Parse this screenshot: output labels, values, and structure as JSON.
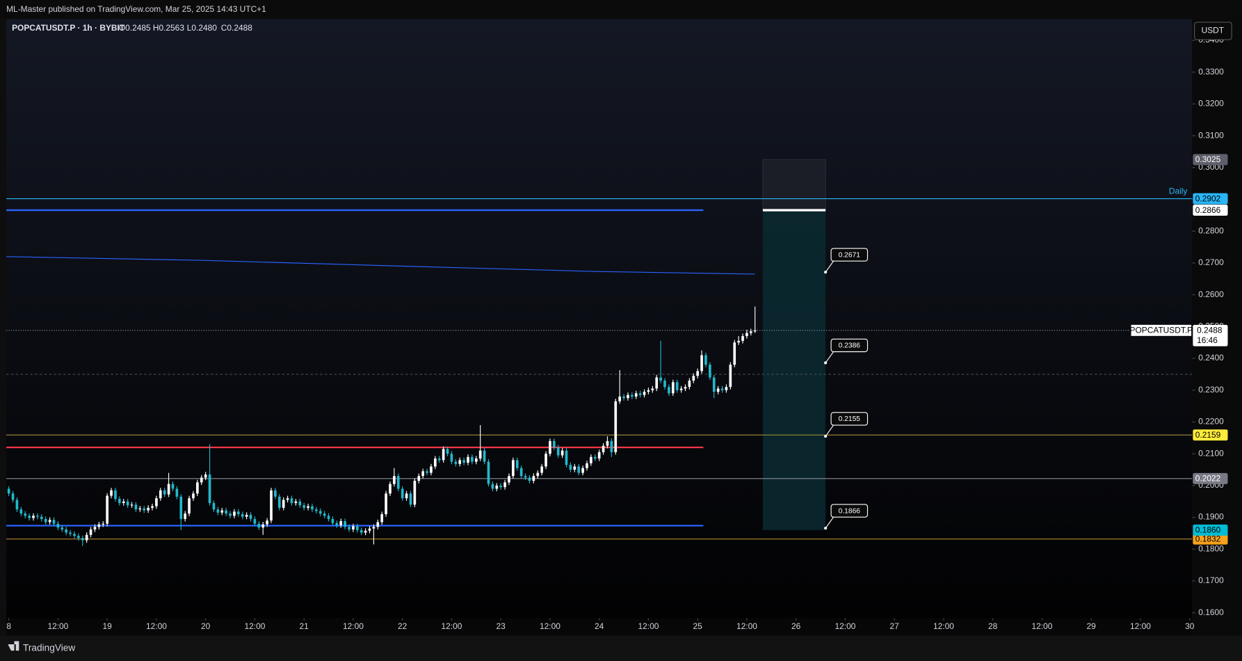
{
  "header": "ML-Master published on TradingView.com, Mar 25, 2025 14:43 UTC+1",
  "footer": "TradingView",
  "currency_button": "USDT",
  "chart_data": {
    "type": "candlestick",
    "title": "POPCATUSDT.P · 1h · BYBIT",
    "ohlc_legend": [
      "O0.2485",
      "H0.2563",
      "L0.2480",
      "C0.2488"
    ],
    "x": [
      0,
      1,
      2,
      3,
      4,
      5,
      6,
      7,
      8,
      9,
      10,
      11,
      12,
      13,
      14,
      15,
      16,
      17,
      18,
      19,
      20,
      21,
      22,
      23,
      24,
      25,
      26,
      27,
      28,
      29,
      30,
      31,
      32,
      33,
      34,
      35,
      36,
      37,
      38,
      39,
      40,
      41,
      42,
      43,
      44,
      45,
      46,
      47,
      48,
      49,
      50,
      51,
      52,
      53,
      54,
      55,
      56,
      57,
      58,
      59,
      60,
      61,
      62,
      63,
      64,
      65,
      66,
      67,
      68,
      69,
      70,
      71,
      72,
      73,
      74,
      75,
      76,
      77,
      78,
      79,
      80,
      81,
      82,
      83,
      84,
      85,
      86,
      87,
      88,
      89,
      90,
      91,
      92,
      93,
      94,
      95,
      96,
      97,
      98,
      99,
      100,
      101,
      102,
      103,
      104,
      105,
      106,
      107,
      108,
      109,
      110,
      111,
      112,
      113,
      114,
      115,
      116,
      117,
      118,
      119,
      120,
      121,
      122,
      123,
      124,
      125,
      126,
      127,
      128,
      129,
      130,
      131,
      132,
      133,
      134,
      135,
      136,
      137,
      138,
      139,
      140,
      141,
      142,
      143,
      144,
      145,
      146,
      147,
      148,
      149,
      150,
      151,
      152,
      153,
      154,
      155,
      156,
      157,
      158,
      159,
      160,
      161,
      162,
      163,
      164,
      165,
      166,
      167,
      168,
      169,
      170,
      171,
      172,
      173,
      174,
      175,
      176,
      177,
      178,
      179,
      180,
      181,
      182
    ],
    "open": [
      0.199,
      0.1975,
      0.1955,
      0.1925,
      0.1912,
      0.1905,
      0.1898,
      0.1905,
      0.1902,
      0.1895,
      0.1885,
      0.1892,
      0.188,
      0.1868,
      0.1862,
      0.1852,
      0.1848,
      0.1842,
      0.1835,
      0.1828,
      0.1845,
      0.1862,
      0.187,
      0.1878,
      0.188,
      0.1968,
      0.1985,
      0.1958,
      0.1945,
      0.195,
      0.1938,
      0.194,
      0.1925,
      0.1928,
      0.1922,
      0.193,
      0.1935,
      0.196,
      0.1985,
      0.1972,
      0.2005,
      0.199,
      0.1965,
      0.1895,
      0.1912,
      0.196,
      0.1975,
      0.201,
      0.2025,
      0.2035,
      0.1945,
      0.1925,
      0.1915,
      0.1922,
      0.1912,
      0.1905,
      0.1918,
      0.191,
      0.1902,
      0.1908,
      0.1895,
      0.188,
      0.1868,
      0.1878,
      0.189,
      0.1985,
      0.1965,
      0.193,
      0.1955,
      0.196,
      0.1945,
      0.195,
      0.1938,
      0.193,
      0.1935,
      0.1925,
      0.192,
      0.1912,
      0.1905,
      0.1895,
      0.1882,
      0.1875,
      0.1888,
      0.187,
      0.1862,
      0.1872,
      0.186,
      0.1852,
      0.1858,
      0.1865,
      0.187,
      0.1885,
      0.191,
      0.1975,
      0.2005,
      0.203,
      0.199,
      0.196,
      0.1975,
      0.194,
      0.2015,
      0.203,
      0.2045,
      0.204,
      0.206,
      0.2085,
      0.208,
      0.2115,
      0.21,
      0.2075,
      0.2068,
      0.208,
      0.2072,
      0.209,
      0.2075,
      0.2085,
      0.211,
      0.2075,
      0.2005,
      0.199,
      0.2,
      0.1995,
      0.201,
      0.203,
      0.208,
      0.2055,
      0.203,
      0.2025,
      0.2015,
      0.203,
      0.204,
      0.206,
      0.21,
      0.214,
      0.212,
      0.2095,
      0.211,
      0.2065,
      0.205,
      0.206,
      0.204,
      0.2055,
      0.207,
      0.209,
      0.2085,
      0.2105,
      0.2125,
      0.214,
      0.2105,
      0.2265,
      0.228,
      0.2275,
      0.2285,
      0.228,
      0.229,
      0.2285,
      0.2295,
      0.23,
      0.2305,
      0.234,
      0.233,
      0.231,
      0.229,
      0.2325,
      0.23,
      0.2305,
      0.231,
      0.233,
      0.2345,
      0.236,
      0.241,
      0.238,
      0.234,
      0.2295,
      0.2305,
      0.23,
      0.231,
      0.238,
      0.245,
      0.2455,
      0.247,
      0.248,
      0.2485
    ],
    "high": [
      0.1998,
      0.1983,
      0.1963,
      0.1933,
      0.192,
      0.1913,
      0.1913,
      0.1913,
      0.191,
      0.1903,
      0.19,
      0.19,
      0.1888,
      0.1876,
      0.187,
      0.186,
      0.1856,
      0.185,
      0.1843,
      0.1853,
      0.187,
      0.1878,
      0.1886,
      0.1888,
      0.1976,
      0.1993,
      0.1993,
      0.1966,
      0.1958,
      0.1958,
      0.1948,
      0.1948,
      0.1936,
      0.1936,
      0.1938,
      0.1943,
      0.1968,
      0.1993,
      0.1993,
      0.204,
      0.2013,
      0.1998,
      0.1973,
      0.192,
      0.1968,
      0.1983,
      0.2018,
      0.2033,
      0.2043,
      0.213,
      0.1953,
      0.1933,
      0.193,
      0.193,
      0.192,
      0.1926,
      0.1926,
      0.1918,
      0.1916,
      0.1916,
      0.1903,
      0.1888,
      0.1886,
      0.1898,
      0.1993,
      0.1993,
      0.1973,
      0.1963,
      0.1968,
      0.1968,
      0.1958,
      0.1958,
      0.1946,
      0.1943,
      0.1943,
      0.1933,
      0.1928,
      0.192,
      0.1913,
      0.1903,
      0.189,
      0.1896,
      0.1896,
      0.1878,
      0.188,
      0.188,
      0.1868,
      0.1866,
      0.1873,
      0.1878,
      0.1893,
      0.1918,
      0.1983,
      0.2013,
      0.2055,
      0.2038,
      0.1998,
      0.1983,
      0.1983,
      0.2023,
      0.2038,
      0.2053,
      0.2053,
      0.2068,
      0.2093,
      0.2093,
      0.2123,
      0.2123,
      0.2108,
      0.2083,
      0.2088,
      0.2088,
      0.2098,
      0.2098,
      0.2093,
      0.219,
      0.2118,
      0.2083,
      0.2013,
      0.2008,
      0.2008,
      0.2018,
      0.2038,
      0.2088,
      0.2088,
      0.2063,
      0.2038,
      0.2033,
      0.2038,
      0.2048,
      0.2068,
      0.2108,
      0.2148,
      0.2148,
      0.2128,
      0.2118,
      0.2118,
      0.2073,
      0.2068,
      0.2068,
      0.2063,
      0.2078,
      0.2098,
      0.2098,
      0.2113,
      0.2133,
      0.2155,
      0.2148,
      0.2273,
      0.2363,
      0.2288,
      0.2293,
      0.2293,
      0.2298,
      0.2298,
      0.2303,
      0.2308,
      0.2313,
      0.2348,
      0.2455,
      0.2338,
      0.2318,
      0.2333,
      0.2333,
      0.2313,
      0.2318,
      0.2338,
      0.2353,
      0.2368,
      0.2425,
      0.2418,
      0.2388,
      0.2348,
      0.2313,
      0.2313,
      0.2318,
      0.2388,
      0.2458,
      0.247,
      0.2478,
      0.249,
      0.2493,
      0.2563
    ],
    "low": [
      0.1967,
      0.1947,
      0.1917,
      0.1904,
      0.1897,
      0.189,
      0.189,
      0.1894,
      0.1887,
      0.1877,
      0.1877,
      0.1872,
      0.186,
      0.1854,
      0.1844,
      0.184,
      0.1834,
      0.1827,
      0.181,
      0.182,
      0.1837,
      0.1854,
      0.1862,
      0.187,
      0.1872,
      0.196,
      0.195,
      0.1937,
      0.1937,
      0.193,
      0.193,
      0.1917,
      0.1917,
      0.1914,
      0.1914,
      0.1922,
      0.1927,
      0.1952,
      0.1964,
      0.1964,
      0.1982,
      0.1957,
      0.186,
      0.1887,
      0.1904,
      0.1952,
      0.1967,
      0.2002,
      0.2017,
      0.1937,
      0.1917,
      0.1907,
      0.1907,
      0.1904,
      0.1897,
      0.1897,
      0.1902,
      0.1894,
      0.1894,
      0.1887,
      0.1872,
      0.186,
      0.1845,
      0.187,
      0.1882,
      0.1957,
      0.1922,
      0.1922,
      0.1947,
      0.1937,
      0.1937,
      0.193,
      0.1922,
      0.1922,
      0.1917,
      0.1912,
      0.1904,
      0.1897,
      0.1887,
      0.1874,
      0.1867,
      0.1867,
      0.1862,
      0.1854,
      0.1854,
      0.1852,
      0.1844,
      0.1844,
      0.185,
      0.1815,
      0.1862,
      0.1877,
      0.1902,
      0.1967,
      0.1997,
      0.1982,
      0.1952,
      0.1952,
      0.1932,
      0.1932,
      0.2007,
      0.2022,
      0.2032,
      0.2032,
      0.2052,
      0.2072,
      0.2072,
      0.2092,
      0.2067,
      0.206,
      0.206,
      0.2064,
      0.2064,
      0.2067,
      0.2067,
      0.2077,
      0.2067,
      0.1997,
      0.1982,
      0.1982,
      0.1987,
      0.1987,
      0.2002,
      0.2022,
      0.2047,
      0.2022,
      0.2017,
      0.2007,
      0.2007,
      0.2022,
      0.2032,
      0.2052,
      0.2092,
      0.2112,
      0.2087,
      0.2087,
      0.2057,
      0.2042,
      0.2042,
      0.2032,
      0.2032,
      0.2047,
      0.2062,
      0.2077,
      0.2077,
      0.2097,
      0.2117,
      0.209,
      0.2097,
      0.2257,
      0.2267,
      0.2267,
      0.2272,
      0.2272,
      0.2277,
      0.2277,
      0.2287,
      0.2292,
      0.2297,
      0.2322,
      0.2302,
      0.2282,
      0.2282,
      0.2292,
      0.2292,
      0.2297,
      0.2302,
      0.2322,
      0.2337,
      0.2352,
      0.2372,
      0.2332,
      0.2275,
      0.2287,
      0.2292,
      0.2292,
      0.2302,
      0.2372,
      0.2442,
      0.2447,
      0.2462,
      0.2472,
      0.248
    ],
    "close": [
      0.1975,
      0.1955,
      0.1925,
      0.1912,
      0.1905,
      0.1898,
      0.1905,
      0.1902,
      0.1895,
      0.1885,
      0.1892,
      0.188,
      0.1868,
      0.1862,
      0.1852,
      0.1848,
      0.1842,
      0.1835,
      0.1828,
      0.1845,
      0.1862,
      0.187,
      0.1878,
      0.188,
      0.1968,
      0.1985,
      0.1958,
      0.1945,
      0.195,
      0.1938,
      0.194,
      0.1925,
      0.1928,
      0.1922,
      0.193,
      0.1935,
      0.196,
      0.1985,
      0.1972,
      0.2005,
      0.199,
      0.1965,
      0.1895,
      0.1912,
      0.196,
      0.1975,
      0.201,
      0.2025,
      0.2035,
      0.1945,
      0.1925,
      0.1915,
      0.1922,
      0.1912,
      0.1905,
      0.1918,
      0.191,
      0.1902,
      0.1908,
      0.1895,
      0.188,
      0.1868,
      0.1878,
      0.189,
      0.1985,
      0.1965,
      0.193,
      0.1955,
      0.196,
      0.1945,
      0.195,
      0.1938,
      0.193,
      0.1935,
      0.1925,
      0.192,
      0.1912,
      0.1905,
      0.1895,
      0.1882,
      0.1875,
      0.1888,
      0.187,
      0.1862,
      0.1872,
      0.186,
      0.1852,
      0.1858,
      0.1865,
      0.187,
      0.1885,
      0.191,
      0.1975,
      0.2005,
      0.203,
      0.199,
      0.196,
      0.1975,
      0.194,
      0.2015,
      0.203,
      0.2045,
      0.204,
      0.206,
      0.2085,
      0.208,
      0.2115,
      0.21,
      0.2075,
      0.2068,
      0.208,
      0.2072,
      0.209,
      0.2075,
      0.2085,
      0.211,
      0.2075,
      0.2005,
      0.199,
      0.2,
      0.1995,
      0.201,
      0.203,
      0.208,
      0.2055,
      0.203,
      0.2025,
      0.2015,
      0.203,
      0.204,
      0.206,
      0.21,
      0.214,
      0.212,
      0.2095,
      0.211,
      0.2065,
      0.205,
      0.206,
      0.204,
      0.2055,
      0.207,
      0.209,
      0.2085,
      0.2105,
      0.2125,
      0.214,
      0.2105,
      0.2265,
      0.228,
      0.2275,
      0.2285,
      0.228,
      0.229,
      0.2285,
      0.2295,
      0.23,
      0.2305,
      0.234,
      0.233,
      0.231,
      0.229,
      0.2325,
      0.23,
      0.2305,
      0.231,
      0.233,
      0.2345,
      0.236,
      0.241,
      0.238,
      0.234,
      0.2295,
      0.2305,
      0.23,
      0.231,
      0.238,
      0.245,
      0.2455,
      0.247,
      0.248,
      0.2485,
      0.2488
    ],
    "up_color": "#ffffff",
    "down_color": "#22b8cc",
    "xlim": [
      -0.6,
      288.6
    ],
    "xticks": [
      {
        "value": 0,
        "label": "8"
      },
      {
        "value": 12,
        "label": "12:00"
      },
      {
        "value": 24,
        "label": "19"
      },
      {
        "value": 36,
        "label": "12:00"
      },
      {
        "value": 48,
        "label": "20"
      },
      {
        "value": 60,
        "label": "12:00"
      },
      {
        "value": 72,
        "label": "21"
      },
      {
        "value": 84,
        "label": "12:00"
      },
      {
        "value": 96,
        "label": "22"
      },
      {
        "value": 108,
        "label": "12:00"
      },
      {
        "value": 120,
        "label": "23"
      },
      {
        "value": 132,
        "label": "12:00"
      },
      {
        "value": 144,
        "label": "24"
      },
      {
        "value": 156,
        "label": "12:00"
      },
      {
        "value": 168,
        "label": "25"
      },
      {
        "value": 180,
        "label": "12:00"
      },
      {
        "value": 192,
        "label": "26"
      },
      {
        "value": 204,
        "label": "12:00"
      },
      {
        "value": 216,
        "label": "27"
      },
      {
        "value": 228,
        "label": "12:00"
      },
      {
        "value": 240,
        "label": "28"
      },
      {
        "value": 252,
        "label": "12:00"
      },
      {
        "value": 264,
        "label": "29"
      },
      {
        "value": 276,
        "label": "12:00"
      },
      {
        "value": 288,
        "label": "30"
      }
    ],
    "ylim": [
      0.1583,
      0.3467
    ],
    "yticks": [
      {
        "value": 0.16,
        "label": "0.1600"
      },
      {
        "value": 0.17,
        "label": "0.1700"
      },
      {
        "value": 0.18,
        "label": "0.1800"
      },
      {
        "value": 0.19,
        "label": "0.1900"
      },
      {
        "value": 0.2,
        "label": "0.2000"
      },
      {
        "value": 0.21,
        "label": "0.2100"
      },
      {
        "value": 0.22,
        "label": "0.2200"
      },
      {
        "value": 0.23,
        "label": "0.2300"
      },
      {
        "value": 0.24,
        "label": "0.2400"
      },
      {
        "value": 0.25,
        "label": "0.2500"
      },
      {
        "value": 0.26,
        "label": "0.2600"
      },
      {
        "value": 0.27,
        "label": "0.2700"
      },
      {
        "value": 0.28,
        "label": "0.2800"
      },
      {
        "value": 0.29,
        "label": "0.2900"
      },
      {
        "value": 0.3,
        "label": "0.3000"
      },
      {
        "value": 0.31,
        "label": "0.3100"
      },
      {
        "value": 0.32,
        "label": "0.3200"
      },
      {
        "value": 0.33,
        "label": "0.3300"
      },
      {
        "value": 0.34,
        "label": "0.3400"
      }
    ],
    "ema": {
      "color": "#2962ff",
      "x": [
        -0.6,
        48,
        96,
        144,
        182
      ],
      "values": [
        0.272,
        0.2708,
        0.269,
        0.2673,
        0.2665
      ]
    },
    "levels": [
      {
        "price": 0.2902,
        "color": "#29b6f6",
        "label_bg": "#29b6f6",
        "label_color": "#000000",
        "text": "Daily"
      },
      {
        "price": 0.2866,
        "color": "#2962ff",
        "x": [
          -0.6,
          169.4
        ]
      },
      {
        "price": 0.235,
        "color": "#4a4e59"
      },
      {
        "price": 0.2159,
        "color": "#a38f3a",
        "label_bg": "#ffeb3b",
        "label_color": "#000000"
      },
      {
        "price": 0.212,
        "color": "#f23645",
        "x": [
          -0.6,
          169.4
        ]
      },
      {
        "price": 0.2022,
        "color": "#8a8d96",
        "label_bg": "#787b86",
        "label_color": "#ffffff"
      },
      {
        "price": 0.1874,
        "color": "#2962ff",
        "x": [
          -0.6,
          169.4
        ]
      },
      {
        "price": 0.1832,
        "color": "#b8872a",
        "label_bg": "#f7a21b",
        "label_color": "#000000"
      }
    ],
    "position": {
      "x": [
        183.9,
        199.2
      ],
      "stop": 0.3025,
      "entry": 0.2866,
      "target": {
        "value": 0.186,
        "label": "0.1860"
      },
      "stop_bg": "#5d606b",
      "entry_bg": "#ffffff",
      "target_bg": "#00bcd4"
    },
    "callouts": [
      0.2671,
      0.2386,
      0.2155,
      0.1866
    ],
    "last_price": {
      "symbol": "POPCATUSDT.P",
      "value": 0.2488,
      "countdown": "16:46"
    }
  }
}
